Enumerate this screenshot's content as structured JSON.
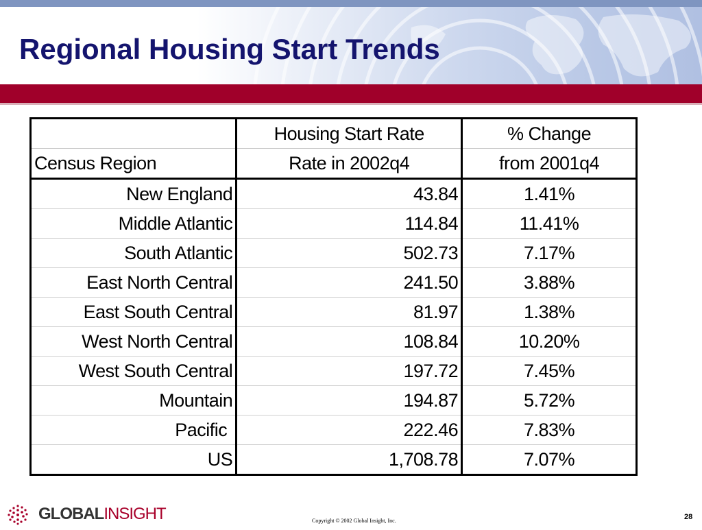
{
  "slide": {
    "title": "Regional Housing Start Trends",
    "page_number": "28",
    "copyright": "Copyright © 2002 Global Insight, Inc.",
    "colors": {
      "title": "#14146e",
      "red_bar": "#a0002a",
      "banner_blue": "#b0c0e2"
    }
  },
  "logo": {
    "part1": "GLOBAL",
    "part2": "INSIGHT",
    "icon": "dotted-globe-icon"
  },
  "table": {
    "header_row1": [
      "",
      "Housing Start Rate",
      "% Change"
    ],
    "header_row2": [
      "Census Region",
      "Rate in 2002q4",
      "from 2001q4"
    ],
    "rows": [
      {
        "region": "New England",
        "rate": "43.84",
        "change": "1.41%"
      },
      {
        "region": "Middle Atlantic",
        "rate": "114.84",
        "change": "11.41%"
      },
      {
        "region": "South Atlantic",
        "rate": "502.73",
        "change": "7.17%"
      },
      {
        "region": "East North Central",
        "rate": "241.50",
        "change": "3.88%"
      },
      {
        "region": "East South Central",
        "rate": "81.97",
        "change": "1.38%"
      },
      {
        "region": "West North Central",
        "rate": "108.84",
        "change": "10.20%"
      },
      {
        "region": "West South Central",
        "rate": "197.72",
        "change": "7.45%"
      },
      {
        "region": "Mountain",
        "rate": "194.87",
        "change": "5.72%"
      },
      {
        "region": "Pacific",
        "rate": "222.46",
        "change": "7.83%"
      },
      {
        "region": "US",
        "rate": "1,708.78",
        "change": "7.07%"
      }
    ]
  }
}
